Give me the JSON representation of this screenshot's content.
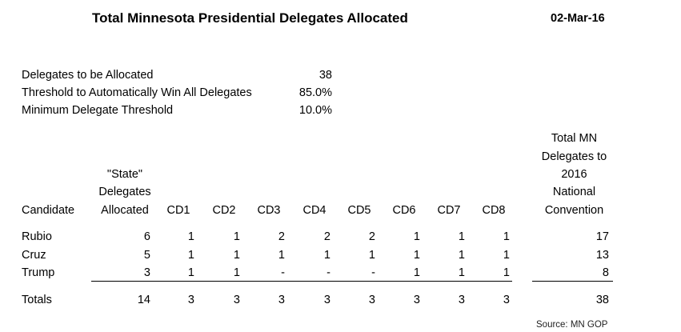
{
  "title": "Total Minnesota Presidential Delegates Allocated",
  "date": "02-Mar-16",
  "summary": [
    {
      "label": "Delegates to be Allocated",
      "value": "38"
    },
    {
      "label": "Threshold to Automatically Win All Delegates",
      "value": "85.0%"
    },
    {
      "label": "Minimum Delegate Threshold",
      "value": "10.0%"
    }
  ],
  "table": {
    "headers": {
      "candidate": "Candidate",
      "state": [
        "\"State\"",
        "Delegates",
        "Allocated"
      ],
      "districts": [
        "CD1",
        "CD2",
        "CD3",
        "CD4",
        "CD5",
        "CD6",
        "CD7",
        "CD8"
      ],
      "total": [
        "Total MN",
        "Delegates to",
        "2016",
        "National",
        "Convention"
      ]
    },
    "rows": [
      {
        "candidate": "Rubio",
        "state": "6",
        "cd": [
          "1",
          "1",
          "2",
          "2",
          "2",
          "1",
          "1",
          "1"
        ],
        "total": "17"
      },
      {
        "candidate": "Cruz",
        "state": "5",
        "cd": [
          "1",
          "1",
          "1",
          "1",
          "1",
          "1",
          "1",
          "1"
        ],
        "total": "13"
      },
      {
        "candidate": "Trump",
        "state": "3",
        "cd": [
          "1",
          "1",
          "-",
          "-",
          "-",
          "1",
          "1",
          "1"
        ],
        "total": "8"
      }
    ],
    "totals": {
      "label": "Totals",
      "state": "14",
      "cd": [
        "3",
        "3",
        "3",
        "3",
        "3",
        "3",
        "3",
        "3"
      ],
      "total": "38"
    }
  },
  "source": "Source: MN GOP"
}
